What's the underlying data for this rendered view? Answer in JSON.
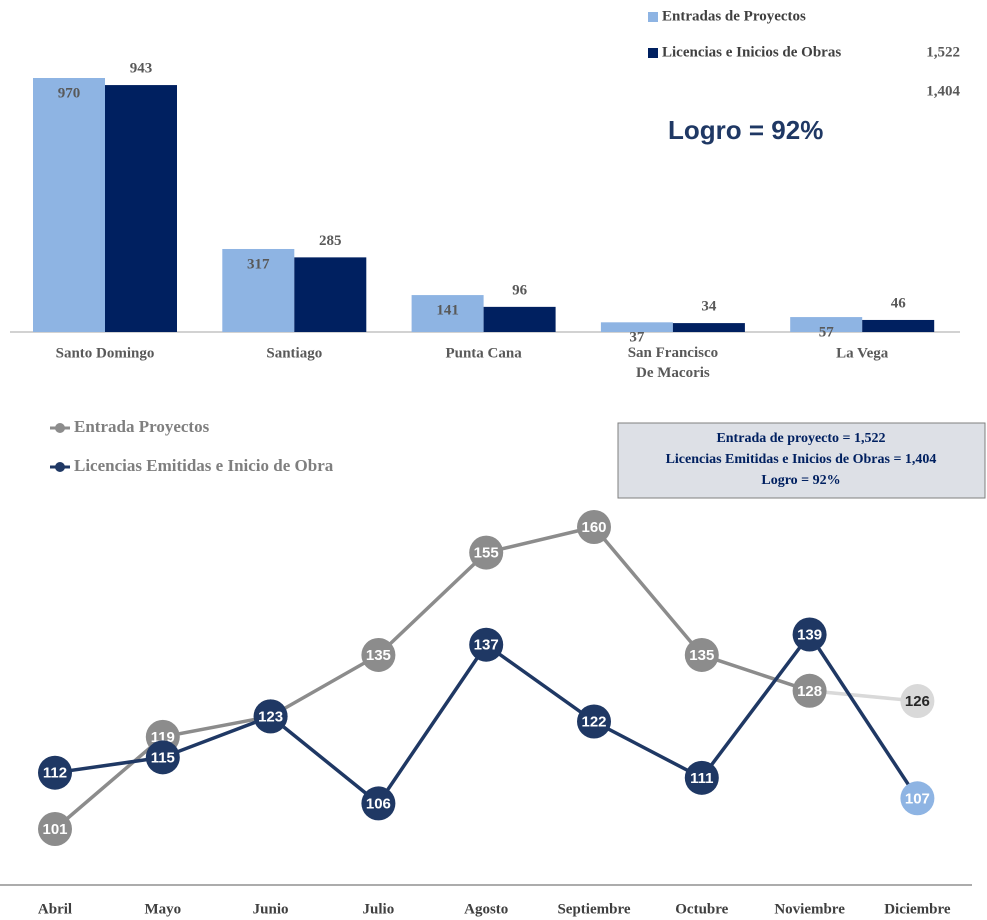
{
  "chart_data": [
    {
      "type": "bar",
      "categories": [
        "Santo Domingo",
        "Santiago",
        "Punta Cana",
        "San Francisco De Macoris",
        "La Vega"
      ],
      "series": [
        {
          "name": "Entradas de Proyectos",
          "color": "#8eb4e3",
          "values": [
            970,
            317,
            141,
            37,
            57
          ],
          "total": 1522,
          "total_label": "1,522"
        },
        {
          "name": "Licencias e Inicios de Obras",
          "color": "#002060",
          "values": [
            943,
            285,
            96,
            34,
            46
          ],
          "total": 1404,
          "total_label": "1,404"
        }
      ],
      "annotation": "Logro =  92%"
    },
    {
      "type": "line",
      "categories": [
        "Abril",
        "Mayo",
        "Junio",
        "Julio",
        "Agosto",
        "Septiembre",
        "Octubre",
        "Noviembre",
        "Diciembre"
      ],
      "series": [
        {
          "name": "Entrada Proyectos",
          "color": "#8c8c8c",
          "highlight_color": "#d9d9d9",
          "values": [
            101,
            119,
            123,
            135,
            155,
            160,
            135,
            128,
            126
          ]
        },
        {
          "name": "Licencias Emitidas e Inicio de Obra",
          "color": "#1f3864",
          "highlight_color": "#8eb4e3",
          "values": [
            112,
            115,
            123,
            106,
            137,
            122,
            111,
            139,
            107
          ]
        }
      ],
      "summary": [
        "Entrada de proyecto = 1,522",
        "Licencias Emitidas e Inicios de Obras  = 1,404",
        "Logro = 92%"
      ]
    }
  ]
}
